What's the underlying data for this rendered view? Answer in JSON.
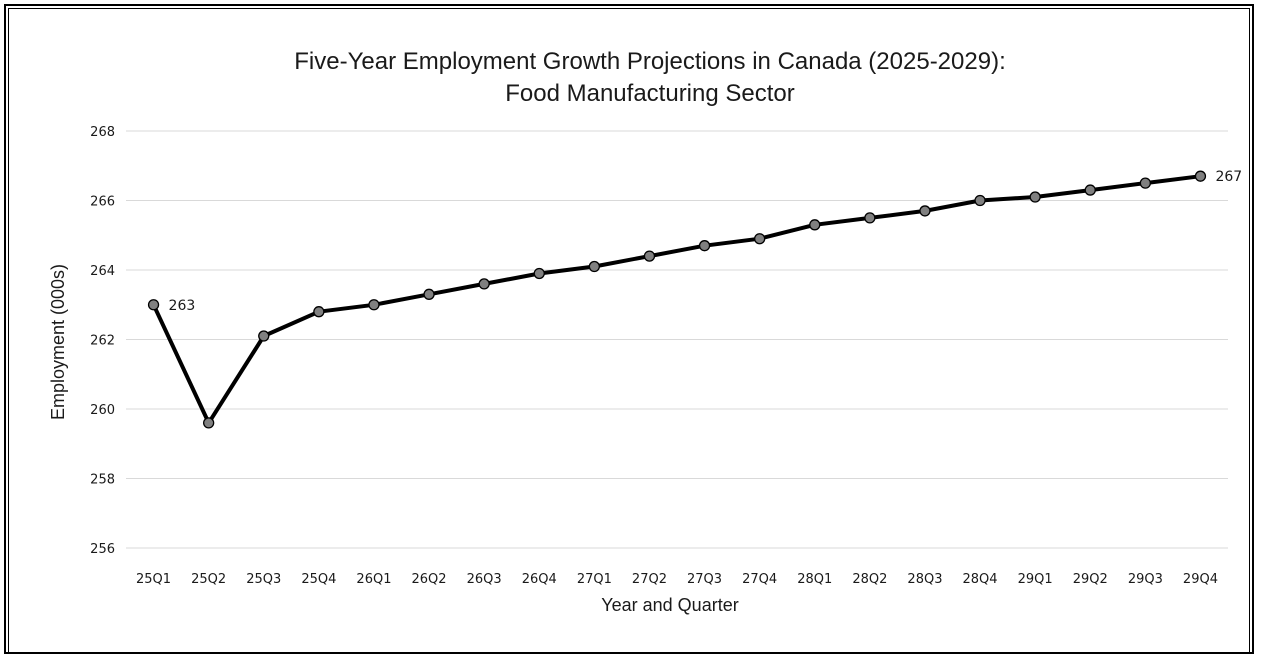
{
  "chart_data": {
    "type": "line",
    "title": "Five-Year Employment Growth Projections in Canada (2025-2029):",
    "subtitle": "Food Manufacturing Sector",
    "xlabel": "Year and Quarter",
    "ylabel": "Employment (000s)",
    "ylim": [
      256,
      268
    ],
    "yticks": [
      256,
      258,
      260,
      262,
      264,
      266,
      268
    ],
    "grid": true,
    "legend": "none",
    "categories": [
      "25Q1",
      "25Q2",
      "25Q3",
      "25Q4",
      "26Q1",
      "26Q2",
      "26Q3",
      "26Q4",
      "27Q1",
      "27Q2",
      "27Q3",
      "27Q4",
      "28Q1",
      "28Q2",
      "28Q3",
      "28Q4",
      "29Q1",
      "29Q2",
      "29Q3",
      "29Q4"
    ],
    "series": [
      {
        "values": [
          263.0,
          259.6,
          262.1,
          262.8,
          263.0,
          263.3,
          263.6,
          263.9,
          264.1,
          264.4,
          264.7,
          264.9,
          265.3,
          265.5,
          265.7,
          266.0,
          266.1,
          266.3,
          266.5,
          266.7
        ],
        "color": "#000000",
        "marker_color": "#808080"
      }
    ],
    "data_labels": [
      {
        "index": 0,
        "text": "263"
      },
      {
        "index": 19,
        "text": "267"
      }
    ]
  }
}
